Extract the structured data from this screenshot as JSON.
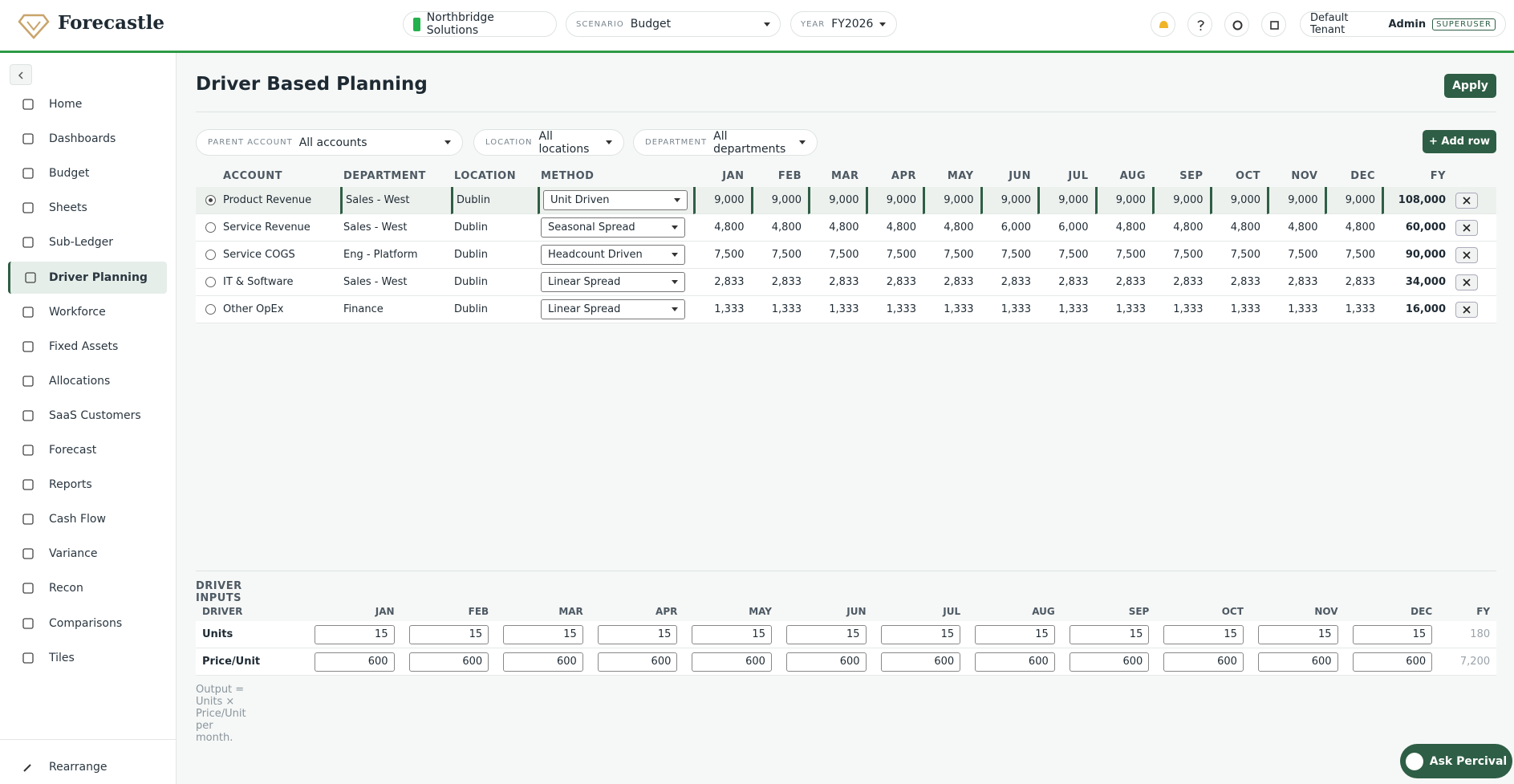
{
  "header": {
    "brand": "Forecastle",
    "entity": "Northbridge Solutions",
    "scenario_label": "SCENARIO",
    "scenario": "Budget",
    "year_label": "YEAR",
    "year": "FY2026",
    "tenant": "Default Tenant",
    "user": "Admin",
    "role": "SUPERUSER"
  },
  "sidebar": {
    "items": [
      "Home",
      "Dashboards",
      "Budget",
      "Sheets",
      "Sub-Ledger",
      "Driver Planning",
      "Workforce",
      "Fixed Assets",
      "Allocations",
      "SaaS Customers",
      "Forecast",
      "Reports",
      "Cash Flow",
      "Variance",
      "Recon",
      "Comparisons",
      "Tiles"
    ],
    "active": "Driver Planning",
    "footer": "Rearrange"
  },
  "page": {
    "title": "Driver Based Planning",
    "apply": "Apply",
    "add_row": "+ Add row"
  },
  "filters": [
    {
      "label": "PARENT ACCOUNT",
      "value": "All accounts"
    },
    {
      "label": "LOCATION",
      "value": "All locations"
    },
    {
      "label": "DEPARTMENT",
      "value": "All departments"
    }
  ],
  "table": {
    "columns": [
      "ACCOUNT",
      "DEPARTMENT",
      "LOCATION",
      "METHOD",
      "JAN",
      "FEB",
      "MAR",
      "APR",
      "MAY",
      "JUN",
      "JUL",
      "AUG",
      "SEP",
      "OCT",
      "NOV",
      "DEC",
      "FY"
    ],
    "rows": [
      [
        "Product Revenue",
        "Sales - West",
        "Dublin",
        "Unit Driven",
        "9,000",
        "9,000",
        "9,000",
        "9,000",
        "9,000",
        "9,000",
        "9,000",
        "9,000",
        "9,000",
        "9,000",
        "9,000",
        "9,000",
        "108,000"
      ],
      [
        "Service Revenue",
        "Sales - West",
        "Dublin",
        "Seasonal Spread",
        "4,800",
        "4,800",
        "4,800",
        "4,800",
        "4,800",
        "6,000",
        "6,000",
        "4,800",
        "4,800",
        "4,800",
        "4,800",
        "4,800",
        "60,000"
      ],
      [
        "Service COGS",
        "Eng - Platform",
        "Dublin",
        "Headcount Driven",
        "7,500",
        "7,500",
        "7,500",
        "7,500",
        "7,500",
        "7,500",
        "7,500",
        "7,500",
        "7,500",
        "7,500",
        "7,500",
        "7,500",
        "90,000"
      ],
      [
        "IT & Software",
        "Sales - West",
        "Dublin",
        "Linear Spread",
        "2,833",
        "2,833",
        "2,833",
        "2,833",
        "2,833",
        "2,833",
        "2,833",
        "2,833",
        "2,833",
        "2,833",
        "2,833",
        "2,833",
        "34,000"
      ],
      [
        "Other OpEx",
        "Finance",
        "Dublin",
        "Linear Spread",
        "1,333",
        "1,333",
        "1,333",
        "1,333",
        "1,333",
        "1,333",
        "1,333",
        "1,333",
        "1,333",
        "1,333",
        "1,333",
        "1,333",
        "16,000"
      ]
    ]
  },
  "driver_inputs": {
    "title": "DRIVER INPUTS",
    "columns": [
      "DRIVER",
      "JAN",
      "FEB",
      "MAR",
      "APR",
      "MAY",
      "JUN",
      "JUL",
      "AUG",
      "SEP",
      "OCT",
      "NOV",
      "DEC",
      "FY"
    ],
    "rows": [
      [
        "Units",
        "15",
        "15",
        "15",
        "15",
        "15",
        "15",
        "15",
        "15",
        "15",
        "15",
        "15",
        "15",
        "180"
      ],
      [
        "Price/Unit",
        "600",
        "600",
        "600",
        "600",
        "600",
        "600",
        "600",
        "600",
        "600",
        "600",
        "600",
        "600",
        "7,200"
      ]
    ],
    "note": "Output = Units × Price/Unit per month."
  },
  "assistant": "Ask Percival"
}
